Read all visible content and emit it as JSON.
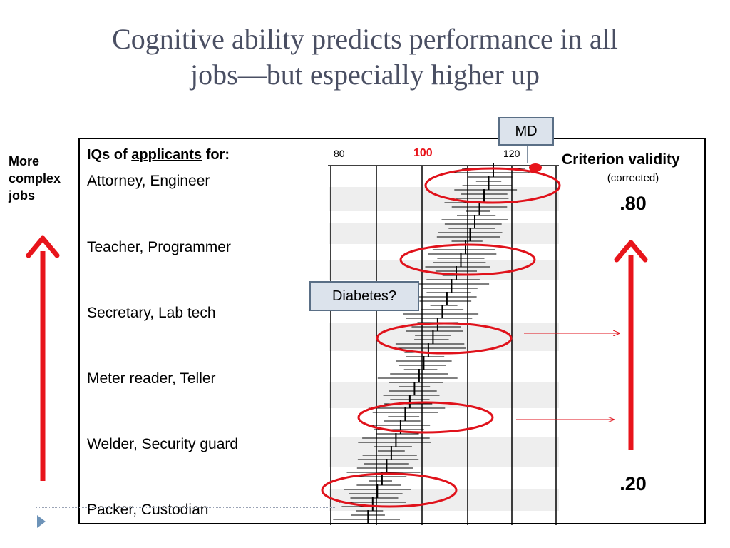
{
  "slide": {
    "title_line1": "Cognitive ability predicts performance in all",
    "title_line2": "jobs—but especially higher up"
  },
  "side_label": {
    "line1": "More",
    "line2": "complex",
    "line3": "jobs"
  },
  "table": {
    "header_prefix": "IQs of ",
    "header_emph": "applicants",
    "header_suffix": " for:",
    "rows": [
      {
        "label": "Attorney, Engineer"
      },
      {
        "label": "Teacher, Programmer"
      },
      {
        "label": "Secretary, Lab tech"
      },
      {
        "label": "Meter reader, Teller"
      },
      {
        "label": "Welder, Security guard"
      },
      {
        "label": "Packer, Custodian"
      }
    ]
  },
  "iq_axis": {
    "tick_80": "80",
    "tick_100": "100",
    "tick_120": "120"
  },
  "criterion": {
    "title": "Criterion validity",
    "subtitle": "(corrected)",
    "top_value": ".80",
    "bottom_value": ".20"
  },
  "callouts": {
    "md": "MD",
    "diabetes": "Diabetes?"
  },
  "colors": {
    "arrow": "#e8141b",
    "ellipse": "#e0121b",
    "callout_fill": "#dce3ec",
    "callout_border": "#5a6f86",
    "title_text": "#4a4f63"
  }
}
